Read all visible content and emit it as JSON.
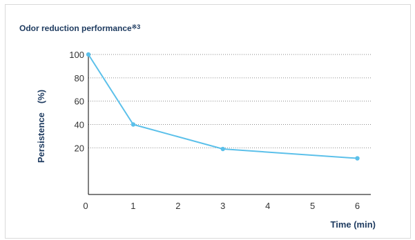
{
  "chart_data": {
    "type": "line",
    "title": "Odor reduction performance",
    "title_note": "※3",
    "xlabel": "Time (min)",
    "ylabel": "Persistence　(%)",
    "x_ticks": [
      0,
      1,
      2,
      3,
      4,
      5,
      6
    ],
    "y_ticks": [
      100,
      80,
      60,
      40,
      20
    ],
    "xlim": [
      0,
      6.3
    ],
    "ylim": [
      -20,
      100
    ],
    "grid": "horizontal-dotted",
    "series": [
      {
        "x": [
          0,
          1,
          3,
          6
        ],
        "y": [
          100,
          40,
          19,
          11
        ],
        "color": "#5bc0ea"
      }
    ]
  },
  "colors": {
    "title": "#1d3a5f",
    "line": "#5bc0ea",
    "grid": "#8a8a8a",
    "axis": "#000000"
  }
}
